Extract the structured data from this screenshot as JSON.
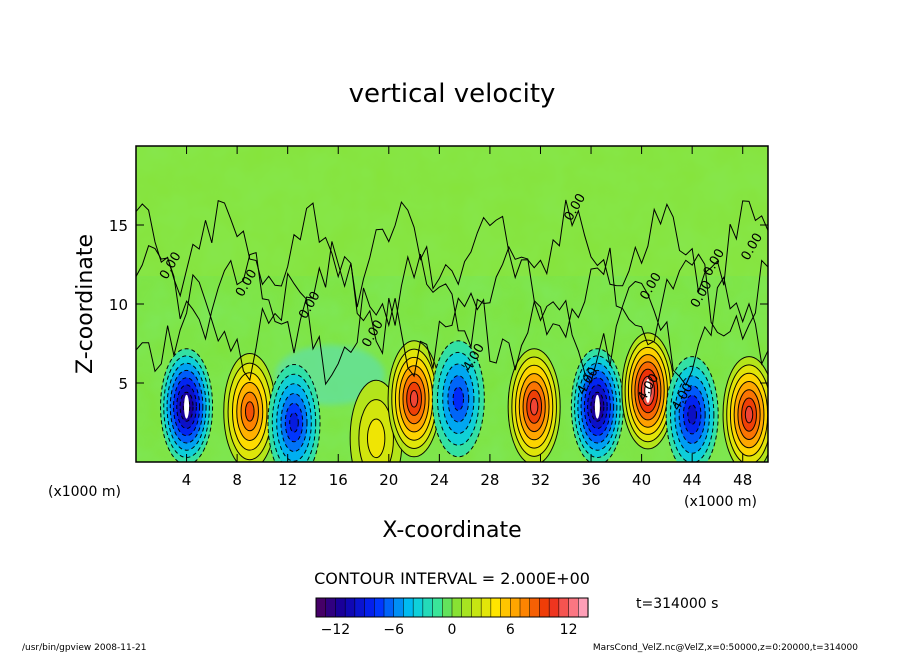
{
  "chart_data": {
    "type": "heatmap",
    "title": "vertical velocity",
    "xlabel": "X-coordinate",
    "ylabel": "Z-coordinate",
    "x_unit_left": "(x1000 m)",
    "x_unit_right": "(x1000 m)",
    "xlim": [
      0,
      50
    ],
    "ylim": [
      0,
      20
    ],
    "x_ticks": [
      4,
      8,
      12,
      16,
      20,
      24,
      28,
      32,
      36,
      40,
      44,
      48
    ],
    "x_tick_labels": [
      "4",
      "8",
      "12",
      "16",
      "20",
      "24",
      "28",
      "32",
      "36",
      "40",
      "44",
      "48"
    ],
    "y_ticks": [
      5,
      10,
      15
    ],
    "y_tick_labels": [
      "5",
      "10",
      "15"
    ],
    "contour_interval_text": "CONTOUR INTERVAL = 2.000E+00",
    "contour_labels": [
      "0.00",
      "0.00",
      "0.00",
      "0.00",
      "0.00",
      "4.00",
      "4.00",
      "4.00",
      "4.00",
      "0.00",
      "0.00",
      "0.00",
      "0.00"
    ],
    "cells": [
      {
        "x": 4.0,
        "z": 3.5,
        "value": -13,
        "type": "down"
      },
      {
        "x": 9.0,
        "z": 3.2,
        "value": 9,
        "type": "up"
      },
      {
        "x": 12.5,
        "z": 2.5,
        "value": -9,
        "type": "down"
      },
      {
        "x": 19.0,
        "z": 1.5,
        "value": 4,
        "type": "up"
      },
      {
        "x": 22.0,
        "z": 4.0,
        "value": 11,
        "type": "up"
      },
      {
        "x": 25.5,
        "z": 4.0,
        "value": -8,
        "type": "down"
      },
      {
        "x": 31.5,
        "z": 3.5,
        "value": 11,
        "type": "up"
      },
      {
        "x": 36.5,
        "z": 3.5,
        "value": -13,
        "type": "down"
      },
      {
        "x": 40.5,
        "z": 4.5,
        "value": 13,
        "type": "up"
      },
      {
        "x": 44.0,
        "z": 3.0,
        "value": -10,
        "type": "down"
      },
      {
        "x": 48.5,
        "z": 3.0,
        "value": 11,
        "type": "up"
      }
    ],
    "colorbar": {
      "min": -14,
      "max": 14,
      "ticks": [
        -12,
        -6,
        0,
        6,
        12
      ],
      "tick_labels": [
        "−12",
        "−6",
        "0",
        "6",
        "12"
      ]
    },
    "time_label": "t=314000 s",
    "footer_left": "/usr/bin/gpview  2008-11-21",
    "footer_right": "MarsCond_VelZ.nc@VelZ,x=0:50000,z=0:20000,t=314000"
  }
}
